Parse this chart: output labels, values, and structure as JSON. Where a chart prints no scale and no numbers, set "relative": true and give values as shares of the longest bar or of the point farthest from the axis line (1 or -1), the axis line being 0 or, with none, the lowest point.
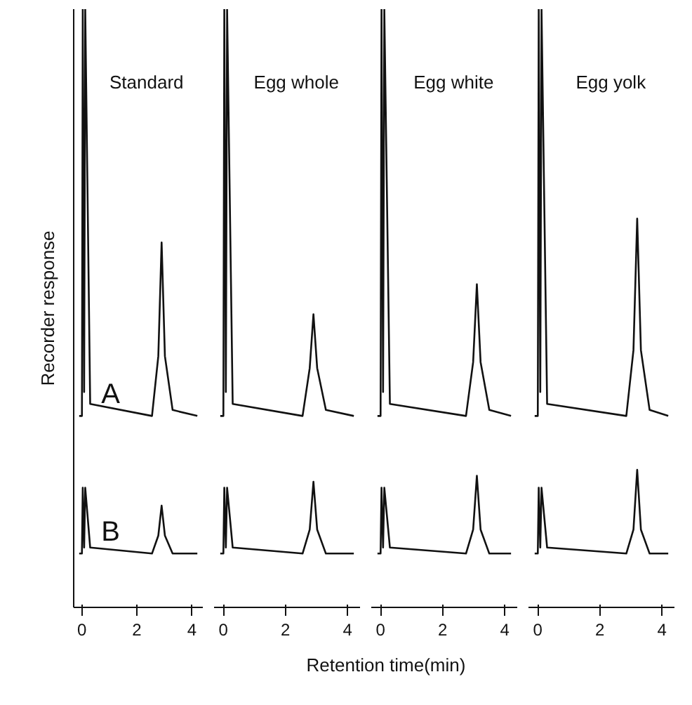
{
  "chart_data": [
    {
      "type": "line",
      "relative": true,
      "title": "Standard",
      "ylabel": "Recorder response",
      "xlim": [
        -0.3,
        4.4
      ],
      "xticks": [
        0,
        2,
        4
      ],
      "grid": false,
      "marker": "none",
      "line_style": "solid",
      "series": [
        {
          "name": "A",
          "color": "#111111",
          "x": [
            -0.1,
            0,
            0.03,
            0.08,
            0.12,
            0.3,
            2.55,
            2.78,
            2.9,
            3.02,
            3.3,
            4.2
          ],
          "values": [
            0.32,
            0.32,
            1,
            0.36,
            1,
            0.34,
            0.32,
            0.42,
            0.61,
            0.42,
            0.33,
            0.32
          ]
        },
        {
          "name": "B",
          "color": "#111111",
          "x": [
            -0.1,
            0,
            0.03,
            0.08,
            0.12,
            0.3,
            2.55,
            2.78,
            2.9,
            3.02,
            3.3,
            4.2
          ],
          "values": [
            0.09,
            0.09,
            0.2,
            0.1,
            0.2,
            0.1,
            0.09,
            0.12,
            0.17,
            0.12,
            0.09,
            0.09
          ]
        }
      ]
    },
    {
      "type": "line",
      "relative": true,
      "title": "Egg whole",
      "xlim": [
        -0.3,
        4.4
      ],
      "xticks": [
        0,
        2,
        4
      ],
      "grid": false,
      "marker": "none",
      "line_style": "solid",
      "series": [
        {
          "color": "#111111",
          "x": [
            -0.1,
            0,
            0.03,
            0.08,
            0.12,
            0.3,
            2.55,
            2.78,
            2.9,
            3.02,
            3.3,
            4.2
          ],
          "values": [
            0.32,
            0.32,
            1,
            0.36,
            1,
            0.34,
            0.32,
            0.4,
            0.49,
            0.4,
            0.33,
            0.32
          ]
        },
        {
          "color": "#111111",
          "x": [
            -0.1,
            0,
            0.03,
            0.08,
            0.12,
            0.3,
            2.55,
            2.78,
            2.9,
            3.02,
            3.3,
            4.2
          ],
          "values": [
            0.09,
            0.09,
            0.2,
            0.1,
            0.2,
            0.1,
            0.09,
            0.13,
            0.21,
            0.13,
            0.09,
            0.09
          ]
        }
      ]
    },
    {
      "type": "line",
      "relative": true,
      "title": "Egg white",
      "xlim": [
        -0.3,
        4.4
      ],
      "xticks": [
        0,
        2,
        4
      ],
      "grid": false,
      "marker": "none",
      "line_style": "solid",
      "series": [
        {
          "color": "#111111",
          "x": [
            -0.1,
            0,
            0.03,
            0.08,
            0.12,
            0.3,
            2.75,
            2.98,
            3.1,
            3.22,
            3.5,
            4.2
          ],
          "values": [
            0.32,
            0.32,
            1,
            0.36,
            1,
            0.34,
            0.32,
            0.41,
            0.54,
            0.41,
            0.33,
            0.32
          ]
        },
        {
          "color": "#111111",
          "x": [
            -0.1,
            0,
            0.03,
            0.08,
            0.12,
            0.3,
            2.75,
            2.98,
            3.1,
            3.22,
            3.5,
            4.2
          ],
          "values": [
            0.09,
            0.09,
            0.2,
            0.1,
            0.2,
            0.1,
            0.09,
            0.13,
            0.22,
            0.13,
            0.09,
            0.09
          ]
        }
      ]
    },
    {
      "type": "line",
      "relative": true,
      "title": "Egg yolk",
      "xlim": [
        -0.3,
        4.4
      ],
      "xticks": [
        0,
        2,
        4
      ],
      "grid": false,
      "marker": "none",
      "line_style": "solid",
      "series": [
        {
          "color": "#111111",
          "x": [
            -0.1,
            0,
            0.03,
            0.08,
            0.12,
            0.3,
            2.85,
            3.08,
            3.2,
            3.32,
            3.6,
            4.2
          ],
          "values": [
            0.32,
            0.32,
            1,
            0.36,
            1,
            0.34,
            0.32,
            0.43,
            0.65,
            0.43,
            0.33,
            0.32
          ]
        },
        {
          "color": "#111111",
          "x": [
            -0.1,
            0,
            0.03,
            0.08,
            0.12,
            0.3,
            2.85,
            3.08,
            3.2,
            3.32,
            3.6,
            4.2
          ],
          "values": [
            0.09,
            0.09,
            0.2,
            0.1,
            0.2,
            0.1,
            0.09,
            0.13,
            0.23,
            0.13,
            0.09,
            0.09
          ]
        }
      ]
    },
    {
      "type": "other",
      "annotations": [
        "Retention time(min)"
      ]
    }
  ]
}
